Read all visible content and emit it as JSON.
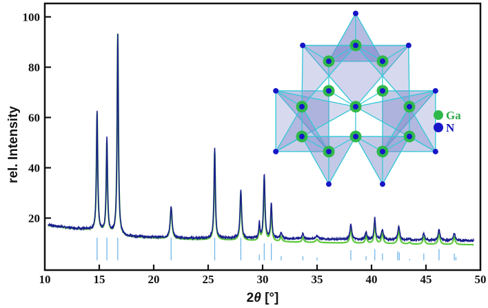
{
  "chart_data": {
    "type": "line",
    "title": "",
    "xlabel": "2θ [°]",
    "xlabel_parts": {
      "prefix": "2",
      "theta": "θ",
      "suffix": " [°]"
    },
    "ylabel": "rel. Intensity",
    "xlim": [
      10,
      50
    ],
    "ylim": [
      0,
      105
    ],
    "grid": false,
    "x_ticks": [
      10,
      15,
      20,
      25,
      30,
      35,
      40,
      45,
      50
    ],
    "y_ticks": [
      20,
      40,
      60,
      80,
      100
    ],
    "colors": {
      "observed": "#1a1f8c",
      "calculated": "#5cc83a",
      "reflections": "#6fb6ea",
      "axis": "#111111"
    },
    "baseline": {
      "observed": [
        [
          10.3,
          17.3
        ],
        [
          12,
          16.3
        ],
        [
          14,
          15.5
        ],
        [
          17.5,
          12.8
        ],
        [
          20,
          12.4
        ],
        [
          23,
          12.0
        ],
        [
          27,
          12.0
        ],
        [
          33,
          11.8
        ],
        [
          38,
          11.5
        ],
        [
          44,
          11.2
        ],
        [
          49.4,
          11.0
        ]
      ],
      "calculated": [
        [
          10.3,
          17.0
        ],
        [
          12,
          16.0
        ],
        [
          14,
          15.2
        ],
        [
          17.5,
          12.5
        ],
        [
          20,
          12.0
        ],
        [
          23,
          11.5
        ],
        [
          27,
          11.2
        ],
        [
          33,
          10.4
        ],
        [
          38,
          10.0
        ],
        [
          44,
          9.6
        ],
        [
          49.4,
          9.4
        ]
      ]
    },
    "peaks": [
      {
        "x": 14.8,
        "observed": 62.5,
        "calculated": 61.5,
        "width": 0.14
      },
      {
        "x": 15.7,
        "observed": 51.5,
        "calculated": 50.0,
        "width": 0.14
      },
      {
        "x": 16.7,
        "observed": 93.0,
        "calculated": 93.0,
        "width": 0.14
      },
      {
        "x": 21.6,
        "observed": 24.5,
        "calculated": 24.0,
        "width": 0.2
      },
      {
        "x": 25.6,
        "observed": 48.0,
        "calculated": 46.5,
        "width": 0.14
      },
      {
        "x": 28.0,
        "observed": 31.0,
        "calculated": 30.0,
        "width": 0.17
      },
      {
        "x": 29.7,
        "observed": 18.0,
        "calculated": 17.0,
        "width": 0.12
      },
      {
        "x": 30.15,
        "observed": 37.0,
        "calculated": 35.5,
        "width": 0.16
      },
      {
        "x": 30.8,
        "observed": 26.0,
        "calculated": 24.5,
        "width": 0.14
      },
      {
        "x": 31.7,
        "observed": 14.0,
        "calculated": 12.5,
        "width": 0.2
      },
      {
        "x": 33.7,
        "observed": 13.8,
        "calculated": 12.3,
        "width": 0.2
      },
      {
        "x": 35.0,
        "observed": 13.0,
        "calculated": 11.5,
        "width": 0.28
      },
      {
        "x": 38.1,
        "observed": 17.5,
        "calculated": 16.0,
        "width": 0.2
      },
      {
        "x": 39.5,
        "observed": 14.5,
        "calculated": 13.0,
        "width": 0.18
      },
      {
        "x": 40.3,
        "observed": 20.0,
        "calculated": 18.5,
        "width": 0.16
      },
      {
        "x": 41.0,
        "observed": 15.5,
        "calculated": 14.0,
        "width": 0.2
      },
      {
        "x": 42.5,
        "observed": 16.5,
        "calculated": 15.0,
        "width": 0.22
      },
      {
        "x": 43.5,
        "observed": 11.8,
        "calculated": 10.3,
        "width": 0.2
      },
      {
        "x": 44.8,
        "observed": 14.0,
        "calculated": 12.5,
        "width": 0.2
      },
      {
        "x": 46.2,
        "observed": 15.5,
        "calculated": 14.0,
        "width": 0.2
      },
      {
        "x": 47.6,
        "observed": 14.0,
        "calculated": 12.5,
        "width": 0.2
      }
    ],
    "reflections": [
      {
        "x": 14.8,
        "h": 1.0
      },
      {
        "x": 15.7,
        "h": 1.0
      },
      {
        "x": 16.7,
        "h": 1.0
      },
      {
        "x": 21.6,
        "h": 1.0
      },
      {
        "x": 25.6,
        "h": 1.0
      },
      {
        "x": 28.0,
        "h": 1.0
      },
      {
        "x": 29.7,
        "h": 0.25
      },
      {
        "x": 30.15,
        "h": 0.75
      },
      {
        "x": 30.8,
        "h": 0.75
      },
      {
        "x": 31.7,
        "h": 0.18
      },
      {
        "x": 33.7,
        "h": 0.18
      },
      {
        "x": 35.0,
        "h": 0.12
      },
      {
        "x": 38.1,
        "h": 0.45
      },
      {
        "x": 39.5,
        "h": 0.18
      },
      {
        "x": 40.3,
        "h": 0.5
      },
      {
        "x": 41.0,
        "h": 0.3
      },
      {
        "x": 42.4,
        "h": 0.4
      },
      {
        "x": 42.55,
        "h": 0.35
      },
      {
        "x": 43.5,
        "h": 0.06
      },
      {
        "x": 44.8,
        "h": 0.3
      },
      {
        "x": 46.2,
        "h": 0.5
      },
      {
        "x": 47.6,
        "h": 0.3
      },
      {
        "x": 47.75,
        "h": 0.15
      }
    ],
    "reflection_band": {
      "bottom": 3.2,
      "top": 12.2
    },
    "inset": {
      "description": "crystal structure of GaN (tetrahedral framework, kagome-like)",
      "legend": [
        {
          "label": "Ga",
          "color": "#2fb84a"
        },
        {
          "label": "N",
          "color": "#1616c8"
        }
      ]
    }
  }
}
